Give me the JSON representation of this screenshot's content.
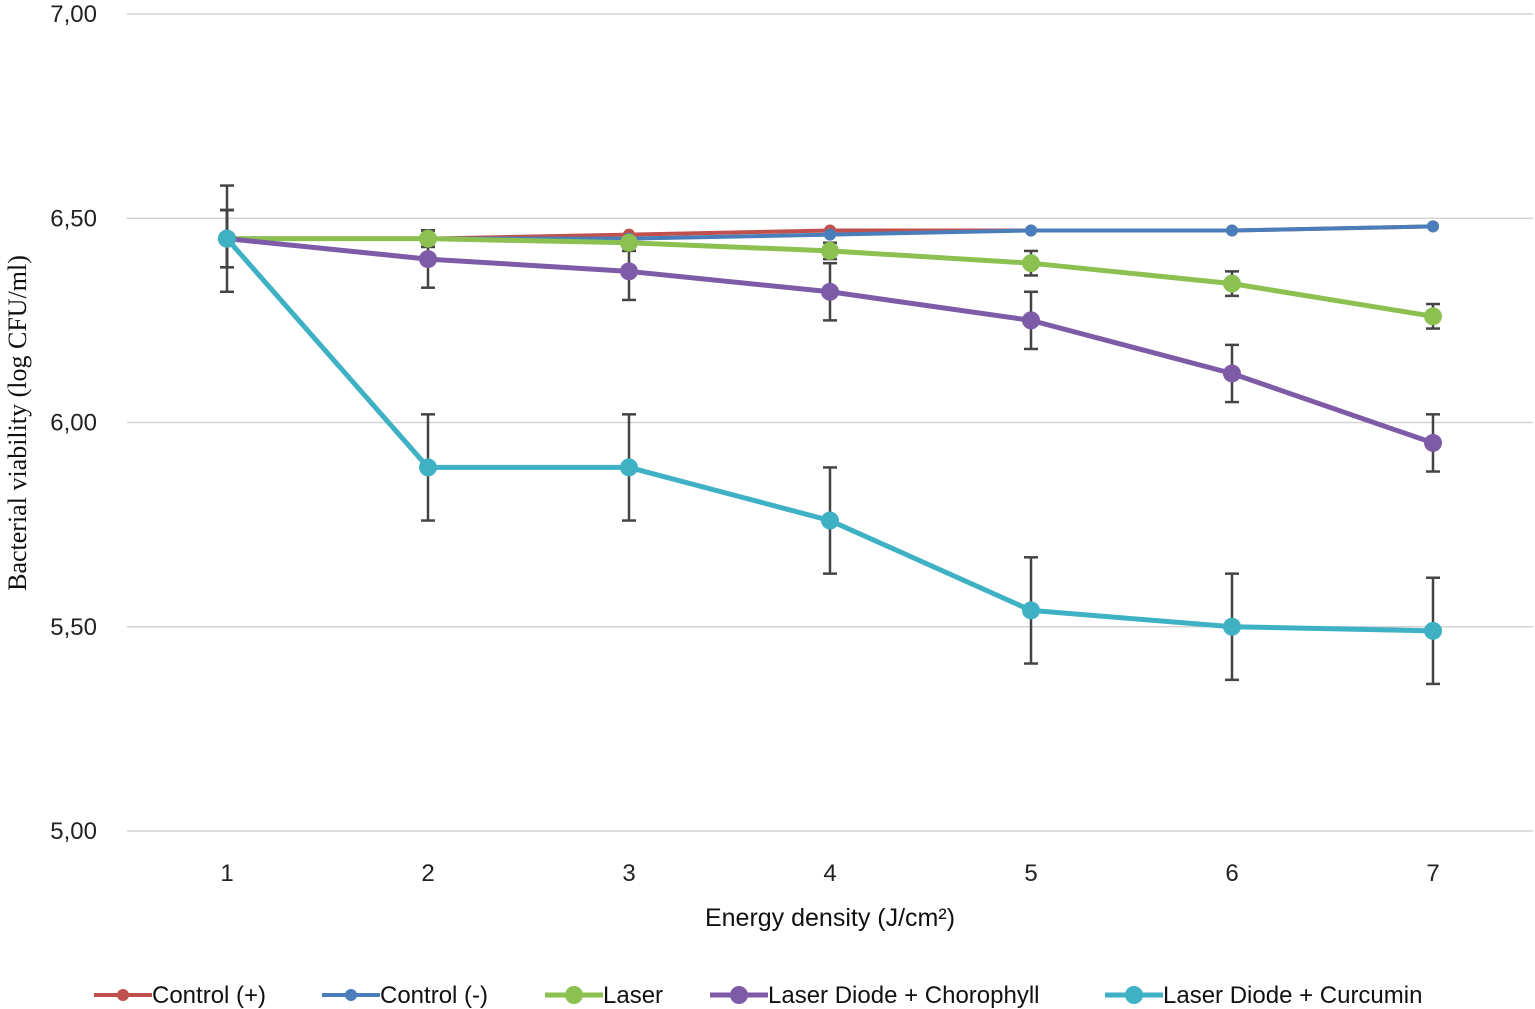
{
  "chart_data": {
    "type": "line",
    "title": "",
    "xlabel": "Energy density (J/cm²)",
    "ylabel": "Bacterial viability (log CFU/ml)",
    "x": [
      "1",
      "2",
      "3",
      "4",
      "5",
      "6",
      "7"
    ],
    "ylim": [
      5.0,
      7.0
    ],
    "yticks": [
      "5,00",
      "5,50",
      "6,00",
      "6,50",
      "7,00"
    ],
    "grid": true,
    "legend_position": "bottom",
    "series": [
      {
        "name": "Control (+)",
        "color": "#c0504d",
        "values": [
          6.45,
          6.45,
          6.46,
          6.47,
          6.47,
          6.47,
          6.48
        ],
        "errors": [
          0.07,
          0.02,
          0.0,
          0.0,
          0.0,
          0.0,
          0.0
        ]
      },
      {
        "name": "Control (-)",
        "color": "#4a7ebb",
        "values": [
          6.45,
          6.45,
          6.45,
          6.46,
          6.47,
          6.47,
          6.48
        ],
        "errors": [
          0.07,
          0.02,
          0.0,
          0.0,
          0.0,
          0.0,
          0.0
        ]
      },
      {
        "name": "Laser",
        "color": "#8cc152",
        "values": [
          6.45,
          6.45,
          6.44,
          6.42,
          6.39,
          6.34,
          6.26
        ],
        "errors": [
          0.07,
          0.02,
          0.02,
          0.02,
          0.03,
          0.03,
          0.03
        ]
      },
      {
        "name": "Laser Diode + Chorophyll",
        "color": "#7d5ba6",
        "values": [
          6.45,
          6.4,
          6.37,
          6.32,
          6.25,
          6.12,
          5.95
        ],
        "errors": [
          0.07,
          0.07,
          0.07,
          0.07,
          0.07,
          0.07,
          0.07
        ]
      },
      {
        "name": "Laser Diode + Curcumin",
        "color": "#3fb1c5",
        "values": [
          6.45,
          5.89,
          5.89,
          5.76,
          5.54,
          5.5,
          5.49
        ],
        "errors": [
          0.13,
          0.13,
          0.13,
          0.13,
          0.13,
          0.13,
          0.13
        ]
      }
    ]
  }
}
